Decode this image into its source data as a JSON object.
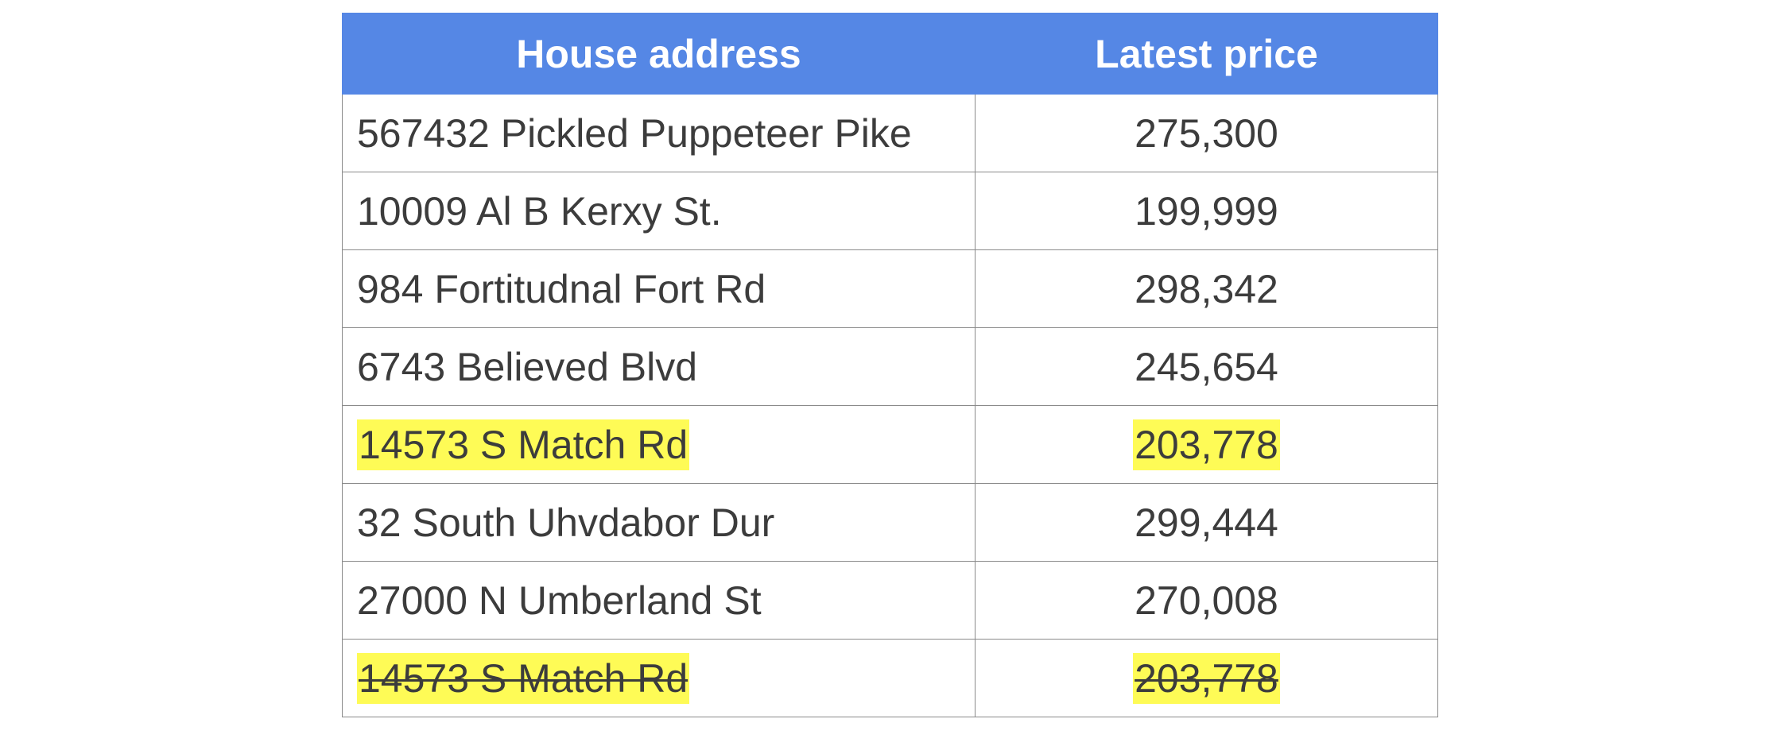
{
  "table": {
    "headers": {
      "address": "House address",
      "price": "Latest price"
    },
    "highlight_color": "#fefb56",
    "header_color": "#5587e5",
    "rows": [
      {
        "address": "567432 Pickled Puppeteer Pike",
        "price": "275,300"
      },
      {
        "address": "10009 Al B Kerxy St.",
        "price": "199,999"
      },
      {
        "address": "984 Fortitudnal Fort Rd",
        "price": "298,342"
      },
      {
        "address": "6743 Believed Blvd",
        "price": "245,654"
      },
      {
        "address": "14573 S Match Rd",
        "price": "203,778",
        "highlighted": true
      },
      {
        "address": "32 South Uhvdabor Dur",
        "price": "299,444"
      },
      {
        "address": "27000 N Umberland St",
        "price": "270,008"
      },
      {
        "address": "14573 S Match Rd",
        "price": "203,778",
        "highlighted": true,
        "strikethrough": true
      }
    ]
  }
}
